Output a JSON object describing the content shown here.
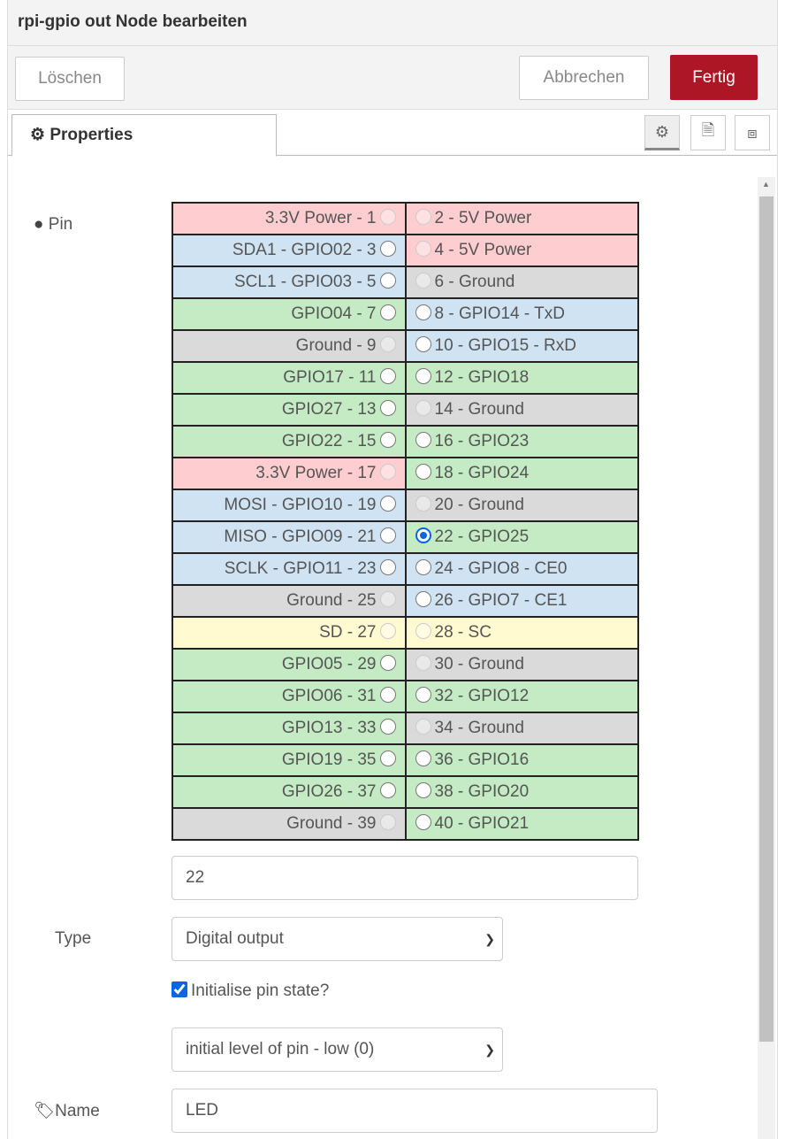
{
  "header": {
    "title": "rpi-gpio out Node bearbeiten"
  },
  "toolbar": {
    "delete": "Löschen",
    "cancel": "Abbrechen",
    "done": "Fertig",
    "accent": "#ad1625"
  },
  "tabs": {
    "properties": "Properties",
    "icons": [
      "gear-icon",
      "description-icon",
      "appearance-icon"
    ]
  },
  "form": {
    "pin_label": "Pin",
    "pins": [
      [
        [
          "3.3V Power - 1",
          "p",
          1,
          0
        ],
        [
          "2 - 5V Power",
          "p",
          1,
          0
        ]
      ],
      [
        [
          "SDA1 - GPIO02 - 3",
          "b",
          0,
          0
        ],
        [
          "4 - 5V Power",
          "p",
          1,
          0
        ]
      ],
      [
        [
          "SCL1 - GPIO03 - 5",
          "b",
          0,
          0
        ],
        [
          "6 - Ground",
          "n",
          1,
          0
        ]
      ],
      [
        [
          "GPIO04 - 7",
          "g",
          0,
          0
        ],
        [
          "8 - GPIO14 - TxD",
          "b",
          0,
          0
        ]
      ],
      [
        [
          "Ground - 9",
          "n",
          1,
          0
        ],
        [
          "10 - GPIO15 - RxD",
          "b",
          0,
          0
        ]
      ],
      [
        [
          "GPIO17 - 11",
          "g",
          0,
          0
        ],
        [
          "12 - GPIO18",
          "g",
          0,
          0
        ]
      ],
      [
        [
          "GPIO27 - 13",
          "g",
          0,
          0
        ],
        [
          "14 - Ground",
          "n",
          1,
          0
        ]
      ],
      [
        [
          "GPIO22 - 15",
          "g",
          0,
          0
        ],
        [
          "16 - GPIO23",
          "g",
          0,
          0
        ]
      ],
      [
        [
          "3.3V Power - 17",
          "p",
          1,
          0
        ],
        [
          "18 - GPIO24",
          "g",
          0,
          0
        ]
      ],
      [
        [
          "MOSI - GPIO10 - 19",
          "b",
          0,
          0
        ],
        [
          "20 - Ground",
          "n",
          1,
          0
        ]
      ],
      [
        [
          "MISO - GPIO09 - 21",
          "b",
          0,
          0
        ],
        [
          "22 - GPIO25",
          "g",
          0,
          1
        ]
      ],
      [
        [
          "SCLK - GPIO11 - 23",
          "b",
          0,
          0
        ],
        [
          "24 - GPIO8 - CE0",
          "b",
          0,
          0
        ]
      ],
      [
        [
          "Ground - 25",
          "n",
          1,
          0
        ],
        [
          "26 - GPIO7 - CE1",
          "b",
          0,
          0
        ]
      ],
      [
        [
          "SD - 27",
          "y",
          1,
          0
        ],
        [
          "28 - SC",
          "y",
          1,
          0
        ]
      ],
      [
        [
          "GPIO05 - 29",
          "g",
          0,
          0
        ],
        [
          "30 - Ground",
          "n",
          1,
          0
        ]
      ],
      [
        [
          "GPIO06 - 31",
          "g",
          0,
          0
        ],
        [
          "32 - GPIO12",
          "g",
          0,
          0
        ]
      ],
      [
        [
          "GPIO13 - 33",
          "g",
          0,
          0
        ],
        [
          "34 - Ground",
          "n",
          1,
          0
        ]
      ],
      [
        [
          "GPIO19 - 35",
          "g",
          0,
          0
        ],
        [
          "36 - GPIO16",
          "g",
          0,
          0
        ]
      ],
      [
        [
          "GPIO26 - 37",
          "g",
          0,
          0
        ],
        [
          "38 - GPIO20",
          "g",
          0,
          0
        ]
      ],
      [
        [
          "Ground - 39",
          "n",
          1,
          0
        ],
        [
          "40 - GPIO21",
          "g",
          0,
          0
        ]
      ]
    ],
    "pin_value": "22",
    "type_label": "Type",
    "type_value": "Digital output",
    "init_label": "Initialise pin state?",
    "init_checked": true,
    "level_value": "initial level of pin - low (0)",
    "name_label": "Name",
    "name_value": "LED"
  }
}
